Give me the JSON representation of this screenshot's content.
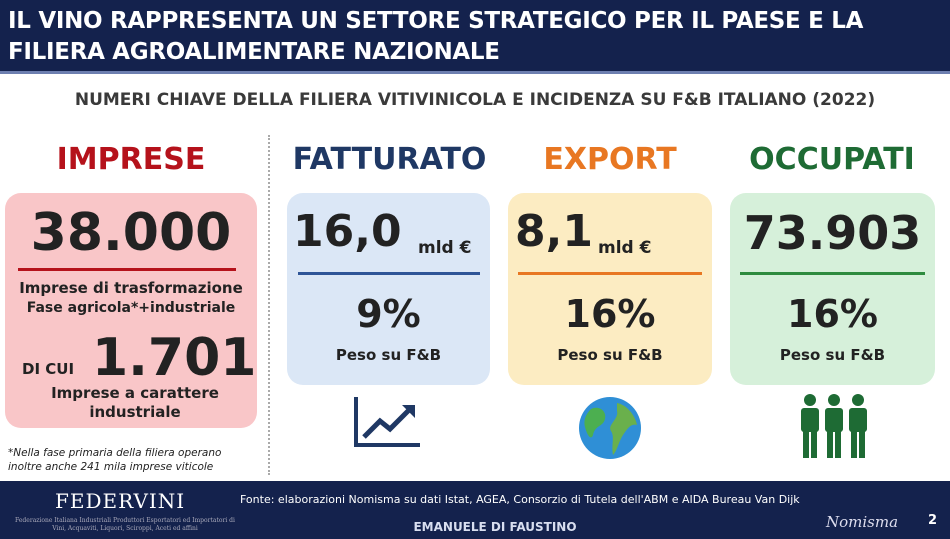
{
  "header": {
    "title_line1": "IL VINO RAPPRESENTA UN SETTORE STRATEGICO PER IL PAESE E LA",
    "title_line2": "FILIERA AGROALIMENTARE NAZIONALE"
  },
  "subtitle": "NUMERI CHIAVE DELLA FILIERA VITIVINICOLA E INCIDENZA SU F&B ITALIANO (2022)",
  "colors": {
    "imprese": "#b5121b",
    "fatturato": "#1f3864",
    "export": "#e87722",
    "occupati": "#1e6b34",
    "navy": "#14224d"
  },
  "imprese": {
    "heading": "IMPRESE",
    "value": "38.000",
    "line1": "Imprese di trasformazione",
    "line2": "Fase agricola*+industriale",
    "dicui": "DI CUI",
    "value2": "1.701",
    "line3": "Imprese a carattere",
    "line4": "industriale",
    "note1": "*Nella fase primaria della filiera operano",
    "note2": "inoltre anche 241 mila imprese viticole"
  },
  "fatturato": {
    "heading": "FATTURATO",
    "value": "16,0",
    "unit": "mld €",
    "pct": "9%",
    "label": "Peso su F&B",
    "icon": "chart-growth-icon"
  },
  "export": {
    "heading": "EXPORT",
    "value": "8,1",
    "unit": "mld €",
    "pct": "16%",
    "label": "Peso su F&B",
    "icon": "globe-icon"
  },
  "occupati": {
    "heading": "OCCUPATI",
    "value": "73.903",
    "pct": "16%",
    "label": "Peso su F&B",
    "icon": "people-icon"
  },
  "footer": {
    "logo": "FEDERVINI",
    "logo_sub1": "Federazione Italiana Industriali Produttori Esportatori ed Importatori di",
    "logo_sub2": "Vini, Acquaviti, Liquori, Sciroppi, Aceti ed affini",
    "source": "Fonte: elaborazioni Nomisma su dati Istat, AGEA, Consorzio di Tutela dell'ABM e AIDA Bureau Van Dijk",
    "author": "EMANUELE DI FAUSTINO",
    "brand": "Nomisma",
    "page": "2"
  }
}
